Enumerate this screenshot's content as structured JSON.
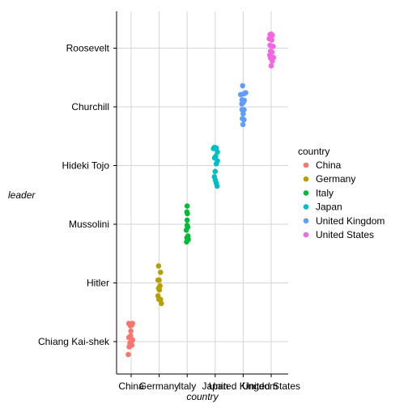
{
  "chart_data": {
    "type": "scatter",
    "subtype": "jitter-strip",
    "xlabel": "country",
    "ylabel": "leader",
    "categories_x": [
      "China",
      "Germany",
      "Italy",
      "Japan",
      "United Kingdom",
      "United States"
    ],
    "categories_y": [
      "Chiang Kai-shek",
      "Hitler",
      "Mussolini",
      "Hideki Tojo",
      "Churchill",
      "Roosevelt"
    ],
    "grid": true,
    "legend": {
      "title": "country",
      "placement": "right",
      "entries": [
        "China",
        "Germany",
        "Italy",
        "Japan",
        "United Kingdom",
        "United States"
      ]
    },
    "series": [
      {
        "name": "China",
        "color": "#F8766D",
        "x": "China",
        "y": "Chiang Kai-shek",
        "offsets": [
          [
            -0.08,
            0.31
          ],
          [
            0.05,
            0.31
          ],
          [
            -0.03,
            0.27
          ],
          [
            0.02,
            0.28
          ],
          [
            -0.01,
            0.18
          ],
          [
            -0.02,
            0.1
          ],
          [
            -0.08,
            0.07
          ],
          [
            0.05,
            0.03
          ],
          [
            -0.04,
            -0.02
          ],
          [
            -0.07,
            -0.09
          ],
          [
            -0.04,
            -0.05
          ],
          [
            0.03,
            -0.06
          ],
          [
            -0.1,
            -0.22
          ],
          [
            0.04,
            0.02
          ]
        ]
      },
      {
        "name": "Germany",
        "color": "#B79F00",
        "x": "Germany",
        "y": "Hitler",
        "offsets": [
          [
            -0.02,
            0.29
          ],
          [
            0.05,
            0.18
          ],
          [
            0.0,
            0.05
          ],
          [
            -0.04,
            0.05
          ],
          [
            -0.02,
            -0.09
          ],
          [
            0.01,
            -0.12
          ],
          [
            -0.04,
            -0.22
          ],
          [
            0.05,
            -0.28
          ],
          [
            0.08,
            -0.35
          ],
          [
            -0.01,
            -0.28
          ],
          [
            0.03,
            -0.05
          ]
        ]
      },
      {
        "name": "Italy",
        "color": "#00BA38",
        "x": "Italy",
        "y": "Mussolini",
        "offsets": [
          [
            0.0,
            0.31
          ],
          [
            -0.01,
            0.21
          ],
          [
            0.01,
            0.18
          ],
          [
            0.0,
            0.07
          ],
          [
            0.02,
            -0.05
          ],
          [
            -0.03,
            -0.1
          ],
          [
            0.03,
            -0.2
          ],
          [
            -0.01,
            -0.23
          ],
          [
            -0.02,
            -0.3
          ],
          [
            0.04,
            -0.26
          ],
          [
            0.0,
            -0.02
          ]
        ]
      },
      {
        "name": "Japan",
        "color": "#00BFC4",
        "x": "Japan",
        "y": "Hideki Tojo",
        "offsets": [
          [
            -0.02,
            0.31
          ],
          [
            0.04,
            0.3
          ],
          [
            0.08,
            0.23
          ],
          [
            -0.06,
            0.29
          ],
          [
            0.02,
            0.16
          ],
          [
            -0.02,
            0.13
          ],
          [
            0.04,
            0.03
          ],
          [
            0.08,
            0.08
          ],
          [
            0.0,
            -0.1
          ],
          [
            -0.03,
            -0.19
          ],
          [
            0.01,
            -0.25
          ],
          [
            0.04,
            -0.3
          ],
          [
            0.07,
            -0.35
          ]
        ]
      },
      {
        "name": "United Kingdom",
        "color": "#619CFF",
        "x": "United Kingdom",
        "y": "Churchill",
        "offsets": [
          [
            -0.02,
            0.36
          ],
          [
            0.09,
            0.24
          ],
          [
            -0.09,
            0.21
          ],
          [
            0.02,
            0.22
          ],
          [
            -0.04,
            0.12
          ],
          [
            0.04,
            0.11
          ],
          [
            0.0,
            0.07
          ],
          [
            -0.05,
            0.05
          ],
          [
            -0.04,
            -0.05
          ],
          [
            0.03,
            -0.05
          ],
          [
            0.0,
            -0.12
          ],
          [
            -0.03,
            -0.2
          ],
          [
            0.03,
            -0.22
          ],
          [
            -0.01,
            -0.3
          ]
        ]
      },
      {
        "name": "United States",
        "color": "#F564E3",
        "x": "United States",
        "y": "Roosevelt",
        "offsets": [
          [
            0.0,
            0.24
          ],
          [
            -0.04,
            0.23
          ],
          [
            0.04,
            0.22
          ],
          [
            -0.07,
            0.16
          ],
          [
            0.02,
            0.14
          ],
          [
            -0.04,
            0.05
          ],
          [
            0.07,
            0.03
          ],
          [
            -0.02,
            -0.05
          ],
          [
            0.03,
            -0.07
          ],
          [
            -0.05,
            -0.12
          ],
          [
            0.08,
            -0.16
          ],
          [
            -0.02,
            -0.17
          ],
          [
            0.04,
            -0.22
          ],
          [
            0.0,
            -0.3
          ]
        ]
      }
    ]
  }
}
